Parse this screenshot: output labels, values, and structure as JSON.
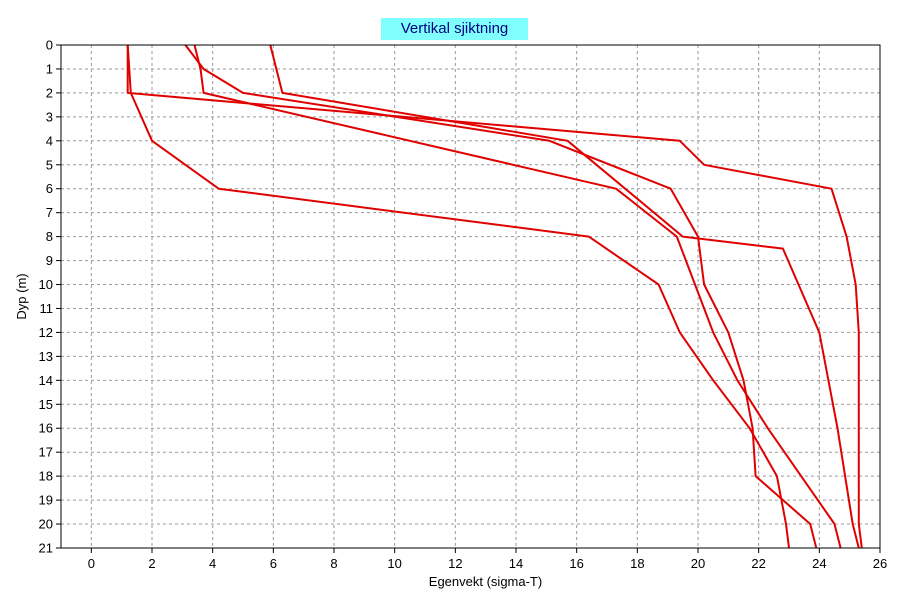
{
  "chart_data": {
    "type": "line",
    "title": "Vertikal sjiktning",
    "xlabel": "Egenvekt (sigma-T)",
    "ylabel": "Dyp (m)",
    "xlim": [
      -1,
      26
    ],
    "ylim": [
      21,
      0
    ],
    "y_inverted": true,
    "xticks": [
      0,
      2,
      4,
      6,
      8,
      10,
      12,
      14,
      16,
      18,
      20,
      22,
      24,
      26
    ],
    "yticks": [
      0,
      1,
      2,
      3,
      4,
      5,
      6,
      7,
      8,
      9,
      10,
      11,
      12,
      13,
      14,
      15,
      16,
      17,
      18,
      19,
      20,
      21
    ],
    "grid": true,
    "legend": "none",
    "line_color": "#e00000",
    "series": [
      {
        "points": [
          [
            1.2,
            0
          ],
          [
            1.3,
            2
          ],
          [
            2.0,
            4
          ],
          [
            4.2,
            6
          ],
          [
            16.4,
            8
          ],
          [
            18.7,
            10
          ],
          [
            19.4,
            12
          ],
          [
            20.5,
            14
          ],
          [
            21.7,
            16
          ],
          [
            22.6,
            18
          ],
          [
            22.9,
            20
          ],
          [
            23.0,
            21
          ]
        ]
      },
      {
        "points": [
          [
            1.2,
            0
          ],
          [
            1.2,
            2
          ],
          [
            19.4,
            4
          ],
          [
            20.2,
            5
          ],
          [
            24.4,
            6
          ],
          [
            24.9,
            8
          ],
          [
            25.2,
            10
          ],
          [
            25.3,
            12
          ],
          [
            25.3,
            14
          ],
          [
            25.3,
            16
          ],
          [
            25.3,
            18
          ],
          [
            25.3,
            20
          ],
          [
            25.4,
            21
          ]
        ]
      },
      {
        "points": [
          [
            3.1,
            0
          ],
          [
            3.7,
            1
          ],
          [
            5.0,
            2
          ],
          [
            15.1,
            4
          ],
          [
            19.1,
            6
          ],
          [
            20.0,
            8
          ],
          [
            20.2,
            10
          ],
          [
            21.0,
            12
          ],
          [
            21.5,
            14
          ],
          [
            21.8,
            16
          ],
          [
            21.9,
            18
          ],
          [
            23.7,
            20
          ],
          [
            23.9,
            21
          ]
        ]
      },
      {
        "points": [
          [
            3.4,
            0
          ],
          [
            3.6,
            1
          ],
          [
            3.7,
            2
          ],
          [
            17.3,
            6
          ],
          [
            19.3,
            8
          ],
          [
            19.9,
            10
          ],
          [
            20.5,
            12
          ],
          [
            21.3,
            14
          ],
          [
            22.3,
            16
          ],
          [
            23.4,
            18
          ],
          [
            24.5,
            20
          ],
          [
            24.7,
            21
          ]
        ]
      },
      {
        "points": [
          [
            5.9,
            0
          ],
          [
            6.3,
            2
          ],
          [
            15.7,
            4
          ],
          [
            19.5,
            8
          ],
          [
            22.8,
            8.5
          ],
          [
            24.0,
            12
          ],
          [
            24.6,
            16
          ],
          [
            25.1,
            20
          ],
          [
            25.3,
            21
          ]
        ]
      }
    ]
  }
}
